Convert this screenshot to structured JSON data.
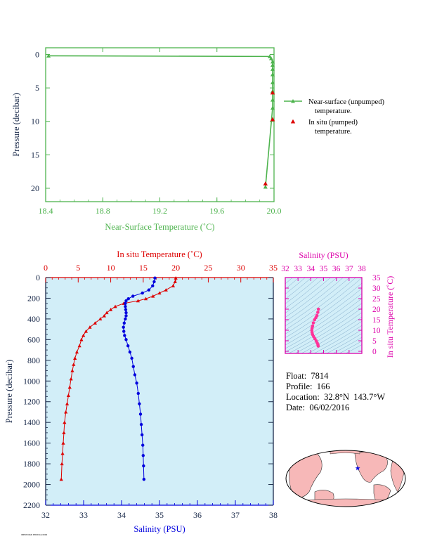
{
  "colors": {
    "green": "#4db34d",
    "red": "#dd0000",
    "blue": "#0000dd",
    "magenta": "#dd00aa",
    "pink": "#ff3399",
    "axis_dark": "#1a2a4a",
    "panel_fill": "#d2eef8",
    "land": "#f7b8b8",
    "ocean": "#ffffff"
  },
  "meta": {
    "float": "Float:  7814",
    "profile": "Profile:  166",
    "location": "Location:  32.8°N  143.7°W",
    "date": "Date:  06/02/2016"
  },
  "footer": "IMPROVED PROFILE 0000",
  "chart_data": [
    {
      "type": "line",
      "xlabel": "Near-Surface Temperature (˚C)",
      "ylabel": "Pressure (decibar)",
      "xlim": [
        18.4,
        20.0
      ],
      "ylim": [
        22,
        -1
      ],
      "x_ticks": [
        "18.4",
        "18.8",
        "19.2",
        "19.6",
        "20.0"
      ],
      "y_ticks": [
        "0",
        "5",
        "10",
        "15",
        "20"
      ],
      "grid": false,
      "legend_position": "right",
      "series": [
        {
          "name": "Near-surface (unpumped)",
          "name2": "temperature.",
          "x": [
            18.42,
            19.97,
            19.98,
            19.99,
            19.99,
            19.99,
            19.99,
            19.99,
            19.99,
            19.99,
            19.99,
            19.94
          ],
          "y": [
            0.2,
            0.3,
            0.6,
            1.1,
            1.6,
            2.2,
            3.0,
            4.2,
            5.5,
            6.8,
            8.0,
            19.8
          ]
        },
        {
          "name": "In situ (pumped)",
          "name2": "temperature.",
          "x": [
            19.99,
            19.99,
            19.94
          ],
          "y": [
            5.7,
            9.7,
            19.3
          ]
        }
      ]
    },
    {
      "type": "line",
      "ylabel": "Pressure (decibar)",
      "ylim": [
        2200,
        0
      ],
      "y_ticks": [
        "0",
        "200",
        "400",
        "600",
        "800",
        "1000",
        "1200",
        "1400",
        "1600",
        "1800",
        "2000",
        "2200"
      ],
      "top_axis": {
        "label": "In situ Temperature (˚C)",
        "lim": [
          0,
          35
        ],
        "ticks": [
          "0",
          "5",
          "10",
          "15",
          "20",
          "25",
          "30",
          "35"
        ]
      },
      "bottom_axis": {
        "label": "Salinity (PSU)",
        "lim": [
          32,
          38
        ],
        "ticks": [
          "32",
          "33",
          "34",
          "35",
          "36",
          "37",
          "38"
        ]
      },
      "series": [
        {
          "axis": "top",
          "marker": "triangle",
          "temperature": [
            20.0,
            19.9,
            19.6,
            18.5,
            17.5,
            16.5,
            15.4,
            14.2,
            12.0,
            10.7,
            10.0,
            9.4,
            9.0,
            8.4,
            7.6,
            6.8,
            6.2,
            5.8,
            5.5,
            5.2,
            4.8,
            4.5,
            4.3,
            4.1,
            3.9,
            3.7,
            3.5,
            3.3,
            3.1,
            2.9,
            2.8,
            2.7,
            2.6,
            2.5,
            2.4
          ],
          "pressure": [
            5,
            40,
            80,
            120,
            150,
            180,
            205,
            225,
            250,
            280,
            310,
            340,
            370,
            400,
            440,
            480,
            520,
            560,
            600,
            660,
            720,
            780,
            840,
            900,
            980,
            1060,
            1140,
            1220,
            1300,
            1400,
            1500,
            1600,
            1700,
            1800,
            1950
          ]
        },
        {
          "axis": "bottom",
          "marker": "circle",
          "salinity": [
            34.88,
            34.86,
            34.82,
            34.72,
            34.55,
            34.3,
            34.18,
            34.12,
            34.1,
            34.1,
            34.11,
            34.12,
            34.12,
            34.1,
            34.07,
            34.05,
            34.06,
            34.08,
            34.12,
            34.17,
            34.22,
            34.27,
            34.31,
            34.35,
            34.4,
            34.44,
            34.47,
            34.5,
            34.52,
            34.54,
            34.56,
            34.57,
            34.58,
            34.59
          ],
          "pressure": [
            5,
            40,
            80,
            120,
            150,
            180,
            205,
            225,
            250,
            280,
            310,
            340,
            370,
            400,
            440,
            480,
            520,
            560,
            600,
            660,
            720,
            780,
            860,
            940,
            1020,
            1120,
            1220,
            1320,
            1420,
            1520,
            1620,
            1720,
            1820,
            1950
          ]
        }
      ]
    },
    {
      "type": "scatter",
      "top_label": "Salinity (PSU)",
      "right_label": "In situ Temperature (˚C)",
      "xlim": [
        32,
        38
      ],
      "ylim": [
        -1,
        35
      ],
      "x_ticks": [
        "32",
        "33",
        "34",
        "35",
        "36",
        "37",
        "38"
      ],
      "y_ticks": [
        "0",
        "5",
        "10",
        "15",
        "20",
        "25",
        "30",
        "35"
      ],
      "series": [
        {
          "salinity": [
            34.6,
            34.55,
            34.48,
            34.4,
            34.3,
            34.2,
            34.14,
            34.1,
            34.08,
            34.1,
            34.14,
            34.22,
            34.32,
            34.42,
            34.5,
            34.56,
            34.58
          ],
          "temperature": [
            20.0,
            18.5,
            17.0,
            16.0,
            15.0,
            13.5,
            12.0,
            11.0,
            10.0,
            9.0,
            8.0,
            7.0,
            6.0,
            5.0,
            4.0,
            3.2,
            2.5
          ]
        }
      ]
    },
    {
      "type": "map",
      "marker_symbol": "star",
      "marker_lat": 32.8,
      "marker_lon": -143.7
    }
  ]
}
